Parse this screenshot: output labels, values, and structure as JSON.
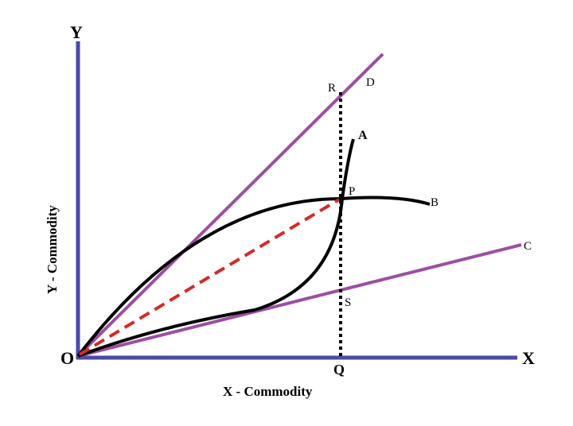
{
  "axes": {
    "y_label": "Y",
    "x_label": "X",
    "origin_label": "O",
    "x_title": "X - Commodity",
    "y_title": "Y - Commodity"
  },
  "points": {
    "R": "R",
    "D": "D",
    "A": "A",
    "P": "P",
    "B": "B",
    "C": "C",
    "S": "S",
    "Q": "Q"
  },
  "colors": {
    "axis": "#4a4aa8",
    "ray": "#9b4f9f",
    "curve": "#000000",
    "dashed_ray": "#d42a2a",
    "dotted_line": "#000000"
  }
}
